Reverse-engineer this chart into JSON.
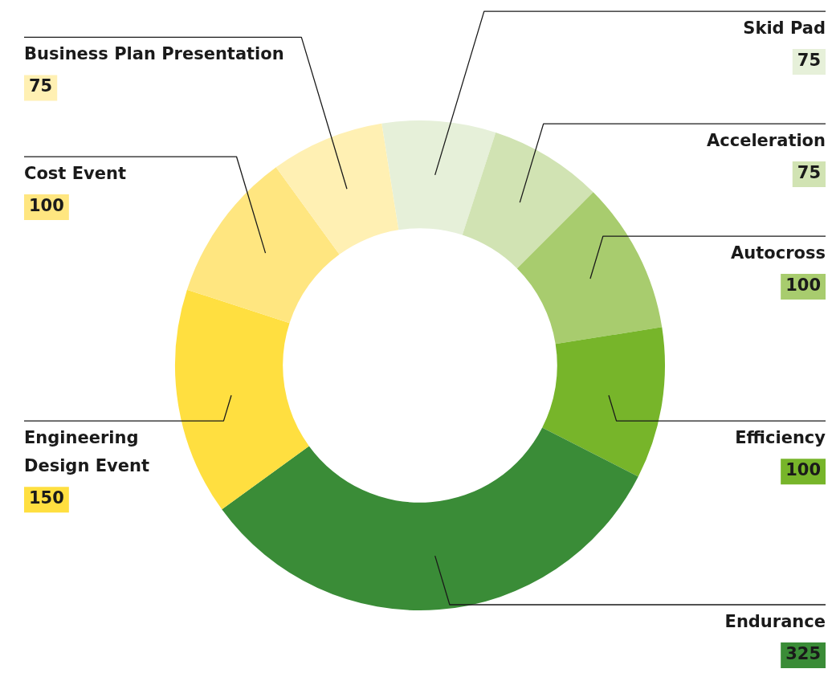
{
  "chart_data": {
    "type": "donut",
    "categories": [
      "Skid Pad",
      "Acceleration",
      "Autocross",
      "Efficiency",
      "Endurance",
      "Engineering Design Event",
      "Cost Event",
      "Business Plan Presentation"
    ],
    "values": [
      75,
      75,
      100,
      100,
      325,
      150,
      100,
      75
    ],
    "colors": [
      "#e6f0d9",
      "#d1e3b3",
      "#a8cc6e",
      "#77b52a",
      "#3a8c37",
      "#ffdf40",
      "#ffe680",
      "#fff0b3"
    ],
    "data_labels": true
  }
}
